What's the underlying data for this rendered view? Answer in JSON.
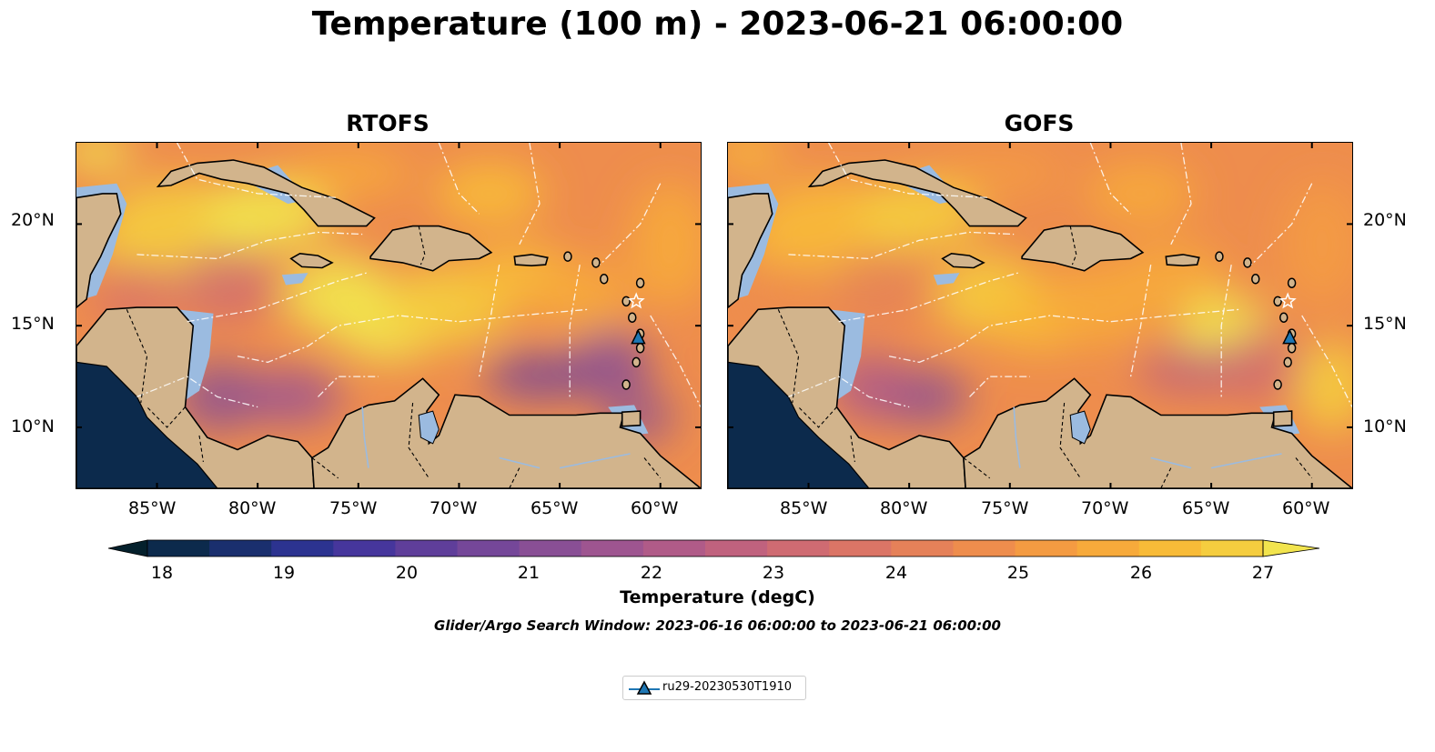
{
  "title": "Temperature (100 m) - 2023-06-21 06:00:00",
  "panels": [
    {
      "title": "RTOFS"
    },
    {
      "title": "GOFS"
    }
  ],
  "lon_ticks": [
    "85°W",
    "80°W",
    "75°W",
    "70°W",
    "65°W",
    "60°W"
  ],
  "lat_ticks": [
    "20°N",
    "15°N",
    "10°N"
  ],
  "colorbar": {
    "ticks": [
      "18",
      "19",
      "20",
      "21",
      "22",
      "23",
      "24",
      "25",
      "26",
      "27"
    ],
    "label": "Temperature (degC)",
    "colors": [
      "#04202c",
      "#0c2a4c",
      "#1a2f6e",
      "#2c3390",
      "#46369c",
      "#5f3e9a",
      "#754799",
      "#894f95",
      "#9e5590",
      "#b05b88",
      "#c0627e",
      "#cf6b72",
      "#db7566",
      "#e58159",
      "#ee8d4d",
      "#f49b42",
      "#f7aa3b",
      "#f8bb38",
      "#f5cd3f",
      "#f2e44e"
    ],
    "extend": "both"
  },
  "search_window": "Glider/Argo Search Window: 2023-06-16 06:00:00 to 2023-06-21 06:00:00",
  "legend": {
    "entries": [
      {
        "label": "ru29-20230530T1910",
        "marker": "triangle",
        "color": "#1f77b4"
      }
    ]
  },
  "map": {
    "extent": {
      "lon": [
        -89,
        -58
      ],
      "lat": [
        7,
        24
      ]
    },
    "land_color": "#d2b48c",
    "shelf_color": "#9bbbe0",
    "glider_position": {
      "lon": -61.1,
      "lat": 14.4
    },
    "star_position": {
      "lon": -61.2,
      "lat": 16.2
    }
  }
}
